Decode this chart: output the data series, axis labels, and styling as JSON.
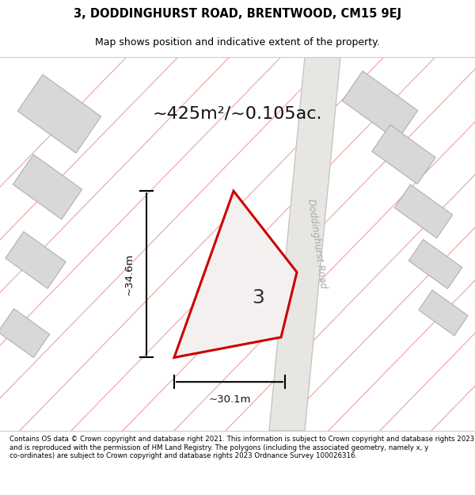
{
  "title_line1": "3, DODDINGHURST ROAD, BRENTWOOD, CM15 9EJ",
  "title_line2": "Map shows position and indicative extent of the property.",
  "area_text": "~425m²/~0.105ac.",
  "width_label": "~30.1m",
  "height_label": "~34.6m",
  "plot_number": "3",
  "road_label": "Doddinghurst Road",
  "footer_text": "Contains OS data © Crown copyright and database right 2021. This information is subject to Crown copyright and database rights 2023 and is reproduced with the permission of HM Land Registry. The polygons (including the associated geometry, namely x, y co-ordinates) are subject to Crown copyright and database rights 2023 Ordnance Survey 100026316.",
  "bg_color": "#f5f5f5",
  "map_bg": "#f0eeeb",
  "plot_color": "#cc0000",
  "building_color": "#d8d8d8",
  "road_color": "#e8e8e8",
  "road_line_color": "#f0b0b0",
  "title_bg": "#ffffff",
  "footer_bg": "#ffffff"
}
